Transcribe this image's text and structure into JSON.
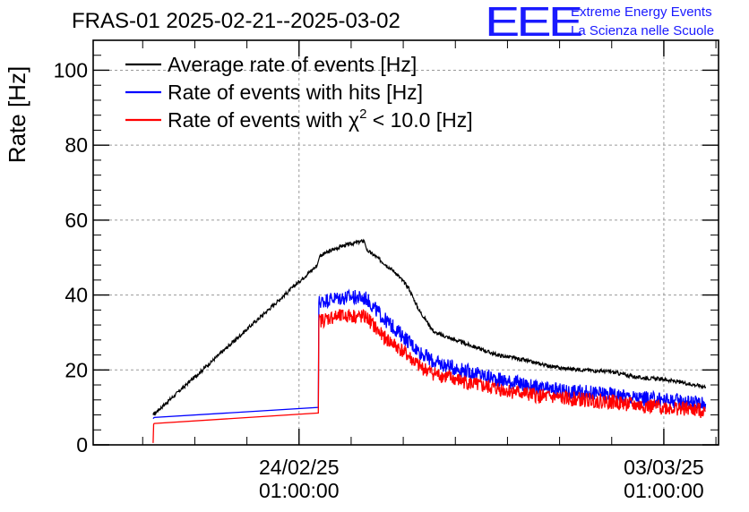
{
  "logo": {
    "mark": "EEE",
    "line1": "Extreme Energy Events",
    "line2": "La Scienza nelle Scuole"
  },
  "colors": {
    "average": "#000000",
    "hits": "#0000ff",
    "chi2": "#ff0000",
    "grid": "#9a9a9a",
    "logo": "#1a1aff"
  },
  "chart_data": {
    "type": "line",
    "title": "FRAS-01 2025-02-21--2025-03-02",
    "ylabel": "Rate [Hz]",
    "xlabel": "",
    "ylim": [
      0,
      108
    ],
    "yticks": [
      0,
      20,
      40,
      60,
      80,
      100
    ],
    "xlim_days": [
      -3.95,
      8.05
    ],
    "xticks": [
      {
        "day": 0,
        "label_date": "24/02/25",
        "label_time": "01:00:00"
      },
      {
        "day": 7,
        "label_date": "03/03/25",
        "label_time": "01:00:00"
      }
    ],
    "grid": true,
    "legend": {
      "position": "top-left",
      "entries": [
        {
          "series": "average",
          "prefix": "Average rate of events [Hz]",
          "has_chi": false,
          "suffix": ""
        },
        {
          "series": "hits",
          "prefix": "Rate of events with hits [Hz]",
          "has_chi": false,
          "suffix": ""
        },
        {
          "series": "chi2",
          "prefix": "Rate of events with ",
          "has_chi": true,
          "chi": "χ",
          "sup": "2",
          "suffix": " < 10.0 [Hz]"
        }
      ]
    },
    "series": [
      {
        "key": "average",
        "name": "Average rate of events [Hz]",
        "noise": 0.5,
        "x": [
          -2.8,
          0.35,
          0.4,
          0.8,
          1.1,
          1.25,
          1.3,
          1.5,
          1.85,
          2.1,
          2.3,
          2.6,
          3.0,
          3.4,
          3.8,
          4.2,
          4.5,
          5.0,
          5.5,
          6.0,
          6.5,
          7.0,
          7.4,
          7.8
        ],
        "values": [
          8.0,
          48.0,
          50.5,
          53.0,
          54.0,
          54.5,
          52.0,
          50.0,
          46.0,
          42.0,
          36.0,
          30.0,
          28.0,
          26.0,
          24.0,
          23.0,
          22.0,
          20.5,
          20.0,
          19.5,
          18.0,
          17.5,
          16.5,
          15.5
        ]
      },
      {
        "key": "hits",
        "name": "Rate of events with hits [Hz]",
        "noise": 2.0,
        "x": [
          -2.8,
          -2.78,
          0.37,
          0.38,
          0.6,
          1.0,
          1.3,
          1.6,
          2.0,
          2.3,
          2.6,
          3.0,
          3.4,
          3.8,
          4.2,
          4.6,
          5.0,
          5.5,
          6.0,
          6.5,
          7.0,
          7.5,
          7.8
        ],
        "values": [
          7.0,
          7.3,
          10.0,
          38.0,
          39.0,
          39.5,
          39.0,
          34.0,
          29.0,
          25.0,
          22.0,
          20.5,
          19.0,
          17.5,
          16.5,
          15.0,
          14.5,
          14.0,
          13.5,
          12.5,
          12.0,
          11.5,
          11.0
        ]
      },
      {
        "key": "chi2",
        "name": "Rate of events with χ2 < 10.0 [Hz]",
        "noise": 2.0,
        "x": [
          -2.8,
          -2.79,
          -2.78,
          0.37,
          0.38,
          0.6,
          1.0,
          1.3,
          1.6,
          2.0,
          2.3,
          2.6,
          3.0,
          3.4,
          3.8,
          4.2,
          4.6,
          5.0,
          5.5,
          6.0,
          6.5,
          7.0,
          7.5,
          7.8
        ],
        "values": [
          0.5,
          5.5,
          5.7,
          8.5,
          33.0,
          34.0,
          34.5,
          34.0,
          29.0,
          25.0,
          21.0,
          19.0,
          17.5,
          16.0,
          15.0,
          14.0,
          13.0,
          12.5,
          12.0,
          11.5,
          10.5,
          10.0,
          9.5,
          9.0
        ]
      }
    ]
  }
}
